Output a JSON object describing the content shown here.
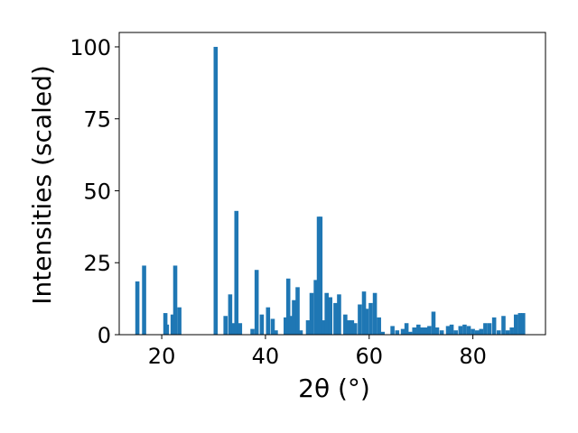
{
  "chart_data": {
    "type": "bar",
    "title": "",
    "xlabel": "2θ (°)",
    "ylabel": "Intensities (scaled)",
    "xlim": [
      11.8,
      94.0
    ],
    "ylim": [
      0,
      105
    ],
    "xticks": [
      20,
      40,
      60,
      80
    ],
    "yticks": [
      0,
      25,
      50,
      75,
      100
    ],
    "grid": false,
    "bar_color": "#1f77b4",
    "bar_width_deg": 0.8,
    "series": [
      {
        "x": [
          15.3,
          16.6,
          20.7,
          21.0,
          22.1,
          22.6,
          23.4,
          30.4,
          32.3,
          33.2,
          33.8,
          34.4,
          35.1,
          37.5,
          38.3,
          39.3,
          40.5,
          41.4,
          42.0,
          43.9,
          44.4,
          44.9,
          45.5,
          46.2,
          46.8,
          48.2,
          48.9,
          49.7,
          50.3,
          50.6,
          51.3,
          51.8,
          52.5,
          53.5,
          54.2,
          55.4,
          56.0,
          56.7,
          57.3,
          58.2,
          59.0,
          59.5,
          60.3,
          61.1,
          61.9,
          62.6,
          64.5,
          65.4,
          66.5,
          67.2,
          67.9,
          68.7,
          69.5,
          70.2,
          70.9,
          71.6,
          72.4,
          73.1,
          74.0,
          75.2,
          75.9,
          76.7,
          77.6,
          78.4,
          79.2,
          80.0,
          80.8,
          81.6,
          82.4,
          83.2,
          84.1,
          85.0,
          85.9,
          86.7,
          87.5,
          88.3,
          89.1,
          89.7
        ],
        "values": [
          18.5,
          24,
          7.5,
          3.5,
          7,
          24,
          9.5,
          100,
          6.5,
          14,
          4,
          43,
          4,
          2,
          22.5,
          7,
          9.5,
          5.5,
          1.5,
          6,
          19.5,
          6.5,
          12,
          16.5,
          1.5,
          5,
          14.5,
          19,
          41,
          41,
          5,
          14.5,
          13,
          11,
          14,
          7,
          5,
          5,
          4,
          10.5,
          15,
          9,
          11,
          14.5,
          6,
          1,
          3,
          1.5,
          2,
          4,
          1,
          2.5,
          3.5,
          2.5,
          2.5,
          3,
          8,
          2.5,
          1.5,
          3,
          3.5,
          1.5,
          3,
          3.5,
          3,
          2,
          1.5,
          2,
          4,
          4,
          6,
          1.5,
          6.5,
          1.5,
          2.5,
          7,
          7.5,
          7.5
        ]
      }
    ]
  }
}
